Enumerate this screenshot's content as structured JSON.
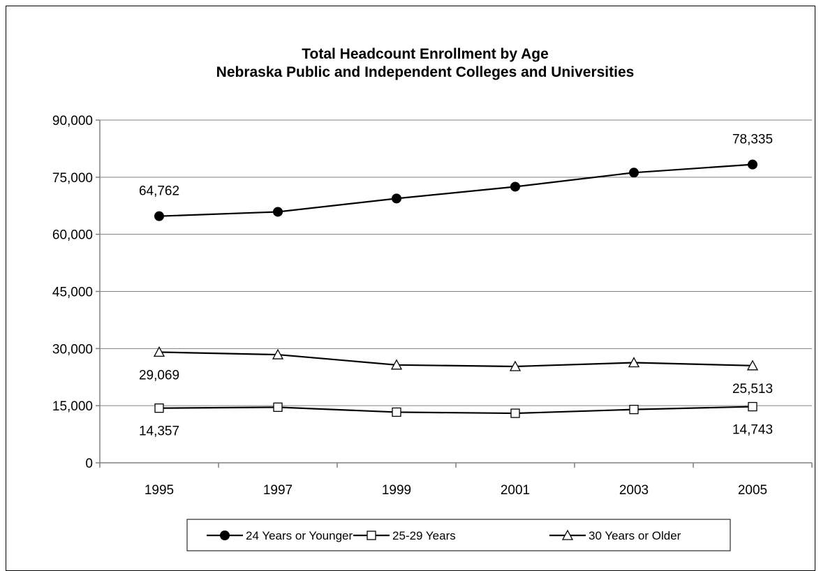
{
  "chart_data": {
    "type": "line",
    "title": [
      "Total Headcount Enrollment by Age",
      "Nebraska Public and Independent Colleges and Universities"
    ],
    "xlabel": "",
    "ylabel": "",
    "categories": [
      "1995",
      "1997",
      "1999",
      "2001",
      "2003",
      "2005"
    ],
    "ylim": [
      0,
      90000
    ],
    "yticks": [
      0,
      15000,
      30000,
      45000,
      60000,
      75000,
      90000
    ],
    "ytick_labels": [
      "0",
      "15,000",
      "30,000",
      "45,000",
      "60,000",
      "75,000",
      "90,000"
    ],
    "grid": true,
    "legend_position": "bottom",
    "series": [
      {
        "name": "24 Years or Younger",
        "marker": "filled-circle",
        "values": [
          64762,
          65900,
          69400,
          72500,
          76200,
          78335
        ],
        "data_labels": [
          {
            "index": 0,
            "text": "64,762",
            "position": "above"
          },
          {
            "index": 5,
            "text": "78,335",
            "position": "above"
          }
        ]
      },
      {
        "name": "25-29 Years",
        "marker": "open-square",
        "values": [
          14357,
          14600,
          13300,
          13000,
          14000,
          14743
        ],
        "data_labels": [
          {
            "index": 0,
            "text": "14,357",
            "position": "below"
          },
          {
            "index": 5,
            "text": "14,743",
            "position": "below"
          }
        ]
      },
      {
        "name": "30 Years or Older",
        "marker": "open-triangle",
        "values": [
          29069,
          28400,
          25700,
          25300,
          26300,
          25513
        ],
        "data_labels": [
          {
            "index": 0,
            "text": "29,069",
            "position": "below"
          },
          {
            "index": 5,
            "text": "25,513",
            "position": "below"
          }
        ]
      }
    ]
  }
}
